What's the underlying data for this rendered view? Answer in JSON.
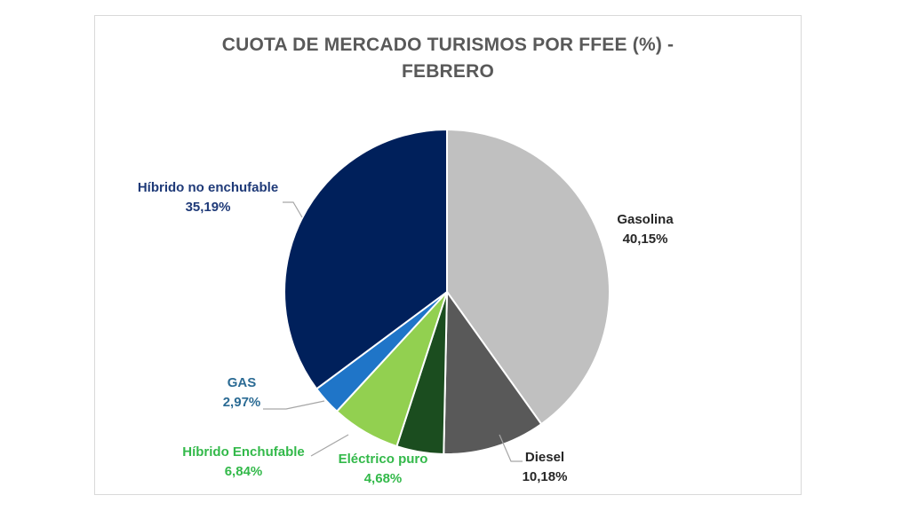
{
  "chart_data": {
    "type": "pie",
    "title_lines": [
      "CUOTA DE MERCADO TURISMOS POR FFEE (%) -",
      "FEBRERO"
    ],
    "slices": [
      {
        "name": "Gasolina",
        "value": 40.15,
        "label": "40,15%",
        "color": "#c0c0c0",
        "label_color": "#262626"
      },
      {
        "name": "Diesel",
        "value": 10.18,
        "label": "10,18%",
        "color": "#595959",
        "label_color": "#262626"
      },
      {
        "name": "Eléctrico puro",
        "value": 4.68,
        "label": "4,68%",
        "color": "#1b4d1f",
        "label_color": "#33b94a"
      },
      {
        "name": "Híbrido Enchufable",
        "value": 6.84,
        "label": "6,84%",
        "color": "#92d050",
        "label_color": "#33b94a"
      },
      {
        "name": "GAS",
        "value": 2.97,
        "label": "2,97%",
        "color": "#1f75c8",
        "label_color": "#2b6b94"
      },
      {
        "name": "Híbrido no enchufable",
        "value": 35.19,
        "label": "35,19%",
        "color": "#00205b",
        "label_color": "#1f3a78"
      }
    ],
    "start_angle": "12 o'clock",
    "direction": "clockwise",
    "legend": "none",
    "data_labels": "outside with leader lines"
  }
}
